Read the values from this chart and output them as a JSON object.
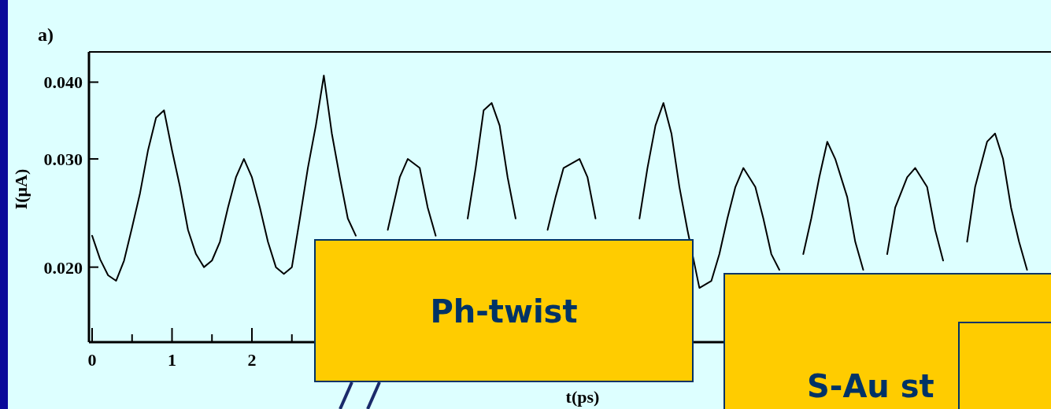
{
  "chart_data": {
    "type": "line",
    "title": "a)",
    "xlabel": "t(ps)",
    "ylabel": "I(μA)",
    "annotations": [
      "Ph-twist",
      "S-Au st"
    ],
    "log": "y",
    "xlim": [
      0,
      12
    ],
    "ylim": [
      0.0151,
      0.0448
    ],
    "xticks": [
      0,
      {
        "value": 0.5,
        "label": null
      },
      1,
      {
        "value": 1.5,
        "label": null
      },
      2,
      {
        "value": 2.5,
        "label": null
      }
    ],
    "yticks": [
      {
        "value": 0.02,
        "label": "0.020"
      },
      {
        "value": 0.03,
        "label": "0.030"
      },
      {
        "value": 0.04,
        "label": "0.040"
      }
    ],
    "series": [
      {
        "color": "#000000",
        "x": [
          0,
          0.1,
          0.2,
          0.3,
          0.4,
          0.5,
          0.6,
          0.7,
          0.8,
          0.9,
          1.0,
          1.1,
          1.2,
          1.3,
          1.4,
          1.5,
          1.6,
          1.7,
          1.8,
          1.9,
          2.0,
          2.1,
          2.2,
          2.3,
          2.4,
          2.5,
          2.6,
          2.7,
          2.8,
          2.9,
          3.0,
          3.1,
          3.2,
          3.3,
          3.5,
          3.7,
          3.85,
          3.95,
          4.1,
          4.2,
          4.3,
          4.5,
          4.7,
          4.8,
          4.9,
          5.0,
          5.1,
          5.2,
          5.3,
          5.5,
          5.7,
          5.8,
          5.9,
          6.1,
          6.2,
          6.3,
          6.5,
          6.85,
          6.95,
          7.05,
          7.15,
          7.25,
          7.35,
          7.45,
          7.6,
          7.75,
          7.85,
          7.95,
          8.05,
          8.15,
          8.3,
          8.4,
          8.5,
          8.6,
          8.75,
          8.9,
          9.0,
          9.1,
          9.2,
          9.3,
          9.45,
          9.55,
          9.65,
          9.8,
          9.95,
          10.05,
          10.2,
          10.3,
          10.45,
          10.55,
          10.65,
          10.8,
          10.95,
          11.05,
          11.2,
          11.3,
          11.4,
          11.5,
          11.6,
          11.7
        ],
        "values": [
          0.0225,
          0.0206,
          0.0194,
          0.019,
          0.0205,
          0.0232,
          0.0264,
          0.031,
          0.035,
          0.036,
          0.031,
          0.027,
          0.023,
          0.021,
          0.02,
          0.0205,
          0.022,
          0.025,
          0.028,
          0.03,
          0.028,
          0.025,
          0.022,
          0.02,
          0.0195,
          0.02,
          0.024,
          0.029,
          0.034,
          0.041,
          0.033,
          0.028,
          0.024,
          0.0225,
          null,
          0.023,
          0.028,
          0.03,
          0.029,
          0.025,
          0.0225,
          null,
          0.024,
          0.029,
          0.036,
          0.037,
          0.034,
          0.028,
          0.024,
          null,
          0.023,
          0.026,
          0.029,
          0.03,
          0.028,
          0.024,
          null,
          0.024,
          0.029,
          0.034,
          0.037,
          0.033,
          0.027,
          0.023,
          0.0185,
          0.019,
          0.021,
          0.024,
          0.027,
          0.029,
          0.027,
          0.024,
          0.021,
          0.0198,
          null,
          0.021,
          0.024,
          0.028,
          0.032,
          0.03,
          0.026,
          0.022,
          0.0198,
          null,
          0.021,
          0.025,
          0.028,
          0.029,
          0.027,
          0.023,
          0.0205,
          null,
          0.022,
          0.027,
          0.032,
          0.033,
          0.03,
          0.025,
          0.022,
          0.0198
        ]
      }
    ]
  }
}
